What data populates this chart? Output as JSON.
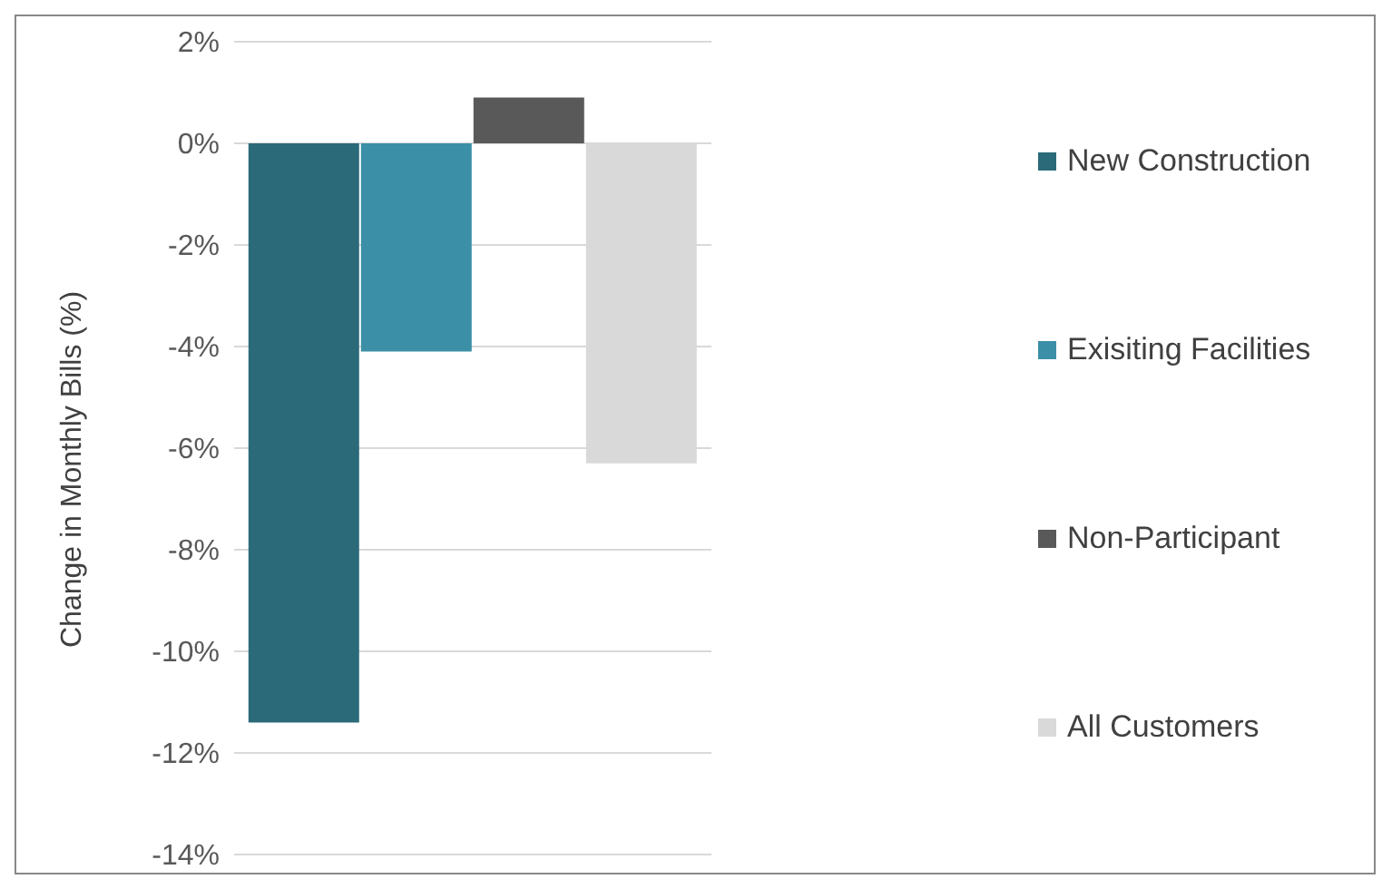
{
  "chart_data": {
    "type": "bar",
    "ylabel": "Change in Monthly Bills (%)",
    "categories": [
      null
    ],
    "series": [
      {
        "name": "New Construction",
        "color": "#2b6a78",
        "values": [
          -11.4
        ]
      },
      {
        "name": "Exisiting Facilities",
        "color": "#3b8fa6",
        "values": [
          -4.1
        ]
      },
      {
        "name": "Non-Participant",
        "color": "#595959",
        "values": [
          0.9
        ]
      },
      {
        "name": "All Customers",
        "color": "#d9d9d9",
        "values": [
          -6.3
        ]
      }
    ],
    "ylim": [
      -14,
      2
    ],
    "yticks": [
      {
        "value": 2,
        "label": "2%"
      },
      {
        "value": 0,
        "label": "0%"
      },
      {
        "value": -2,
        "label": "-2%"
      },
      {
        "value": -4,
        "label": "-4%"
      },
      {
        "value": -6,
        "label": "-6%"
      },
      {
        "value": -8,
        "label": "-8%"
      },
      {
        "value": -10,
        "label": "-10%"
      },
      {
        "value": -12,
        "label": "-12%"
      },
      {
        "value": -14,
        "label": "-14%"
      }
    ],
    "grid": "y",
    "legend": "right",
    "tick_labels": "y"
  }
}
